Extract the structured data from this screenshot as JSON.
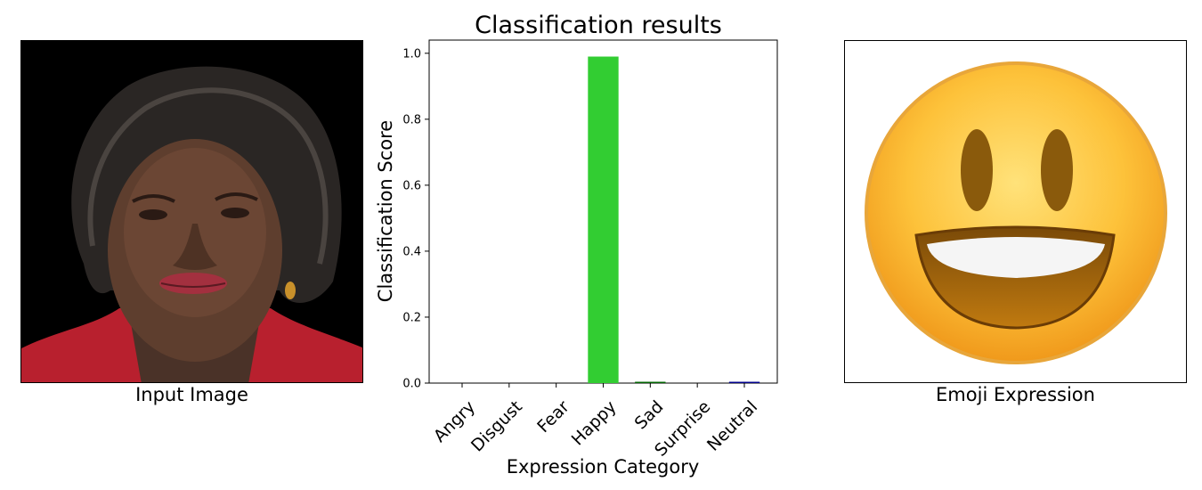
{
  "input_panel": {
    "caption": "Input Image"
  },
  "emoji_panel": {
    "caption": "Emoji Expression",
    "icon": "grinning-face-icon"
  },
  "chart_data": {
    "type": "bar",
    "title": "Classification results",
    "xlabel": "Expression Category",
    "ylabel": "Classification Score",
    "categories": [
      "Angry",
      "Disgust",
      "Fear",
      "Happy",
      "Sad",
      "Surprise",
      "Neutral"
    ],
    "values": [
      0.0,
      0.0,
      0.0,
      0.99,
      0.004,
      0.0,
      0.004
    ],
    "colors": [
      "#ff0000",
      "#008000",
      "#9b30ff",
      "#32cd32",
      "#006400",
      "#00bfff",
      "#00008b"
    ],
    "ylim": [
      0,
      1.04
    ],
    "yticks": [
      0.0,
      0.2,
      0.4,
      0.6,
      0.8,
      1.0
    ],
    "ytick_labels": [
      "0.0",
      "0.2",
      "0.4",
      "0.6",
      "0.8",
      "1.0"
    ],
    "grid": false
  }
}
